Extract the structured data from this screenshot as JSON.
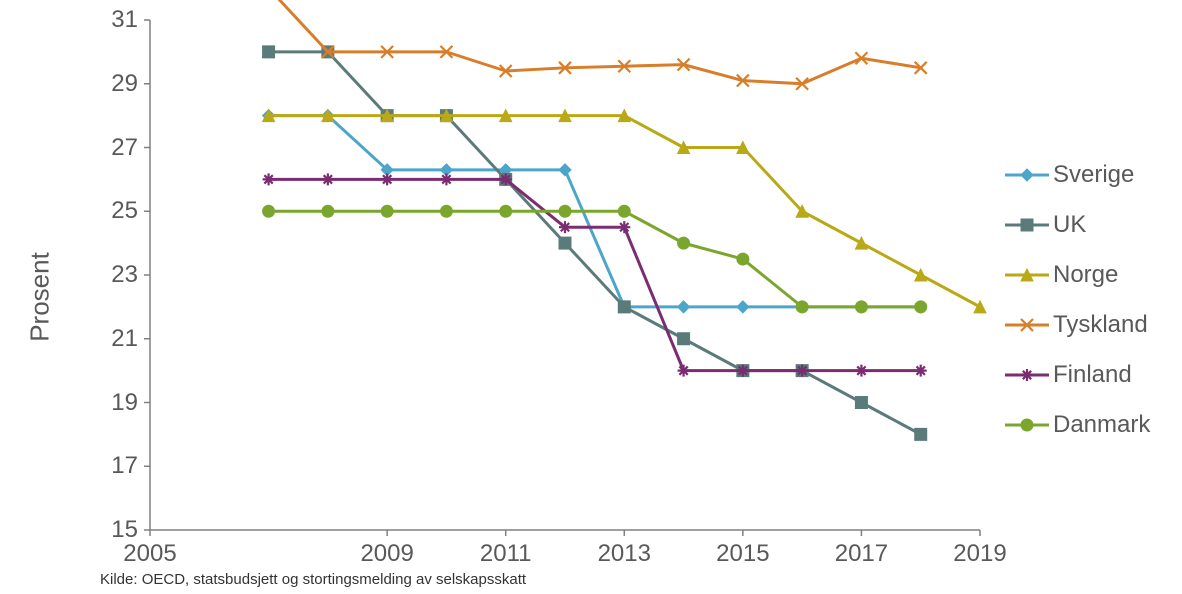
{
  "chart": {
    "type": "line",
    "ylabel": "Prosent",
    "source": "Kilde: OECD, statsbudsjett og stortingsmelding av selskapsskatt",
    "background_color": "#ffffff",
    "axis_color": "#808080",
    "gridline_color": "#d9d9d9",
    "tick_color": "#595959",
    "text_color": "#595959",
    "label_fontsize": 26,
    "tick_fontsize": 24,
    "legend_fontsize": 24,
    "source_fontsize": 15,
    "xlim": [
      2005,
      2019
    ],
    "ylim": [
      15,
      31
    ],
    "xticks": [
      2005,
      2009,
      2011,
      2013,
      2015,
      2017,
      2019
    ],
    "xtick_labels": [
      "2005",
      "2009",
      "2011",
      "2013",
      "2015",
      "2017",
      "2019"
    ],
    "yticks": [
      15,
      17,
      19,
      21,
      23,
      25,
      27,
      29,
      31
    ],
    "ytick_labels": [
      "15",
      "17",
      "19",
      "21",
      "23",
      "25",
      "27",
      "29",
      "31"
    ],
    "line_width": 3,
    "marker_size": 6,
    "x": [
      2007,
      2008,
      2009,
      2010,
      2011,
      2012,
      2013,
      2014,
      2015,
      2016,
      2017,
      2018,
      2019
    ],
    "series": [
      {
        "name": "Sverige",
        "color": "#4ba6c9",
        "marker": "diamond",
        "y": [
          28,
          28,
          26.3,
          26.3,
          26.3,
          26.3,
          22,
          22,
          22,
          22,
          22,
          22,
          null
        ]
      },
      {
        "name": "UK",
        "color": "#5b7a7a",
        "marker": "square",
        "y": [
          30,
          30,
          28,
          28,
          26,
          24,
          22,
          21,
          20,
          20,
          19,
          18,
          null
        ]
      },
      {
        "name": "Norge",
        "color": "#b9a917",
        "marker": "triangle",
        "y": [
          28,
          28,
          28,
          28,
          28,
          28,
          28,
          27,
          27,
          25,
          24,
          23,
          22
        ]
      },
      {
        "name": "Tyskland",
        "color": "#d87e2a",
        "marker": "x",
        "y": [
          32,
          30,
          30,
          30,
          29.4,
          29.5,
          29.55,
          29.6,
          29.1,
          29.0,
          29.8,
          29.5,
          null
        ]
      },
      {
        "name": "Finland",
        "color": "#7a2d71",
        "marker": "star",
        "y": [
          26,
          26,
          26,
          26,
          26,
          24.5,
          24.5,
          20,
          20,
          20,
          20,
          20,
          null
        ]
      },
      {
        "name": "Danmark",
        "color": "#7aa62d",
        "marker": "circle",
        "y": [
          25,
          25,
          25,
          25,
          25,
          25,
          25,
          24,
          23.5,
          22,
          22,
          22,
          null
        ]
      }
    ]
  }
}
